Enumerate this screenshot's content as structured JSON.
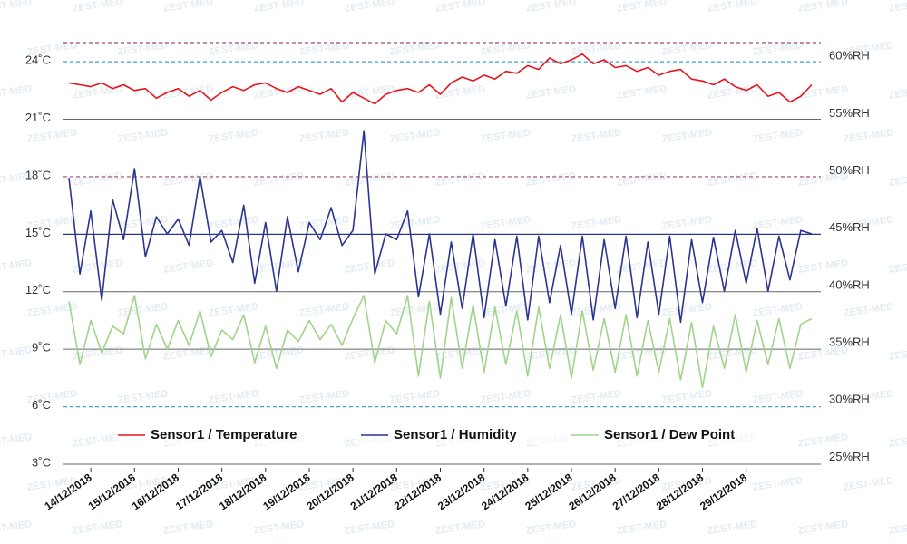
{
  "watermark": "ZEST-MED",
  "chart_data": {
    "type": "line",
    "x": [
      "2018-12-13T12:00",
      "2018-12-13T18:00",
      "2018-12-14T00:00",
      "2018-12-14T06:00",
      "2018-12-14T12:00",
      "2018-12-14T18:00",
      "2018-12-15T00:00",
      "2018-12-15T06:00",
      "2018-12-15T12:00",
      "2018-12-15T18:00",
      "2018-12-16T00:00",
      "2018-12-16T06:00",
      "2018-12-16T12:00",
      "2018-12-16T18:00",
      "2018-12-17T00:00",
      "2018-12-17T06:00",
      "2018-12-17T12:00",
      "2018-12-17T18:00",
      "2018-12-18T00:00",
      "2018-12-18T06:00",
      "2018-12-18T12:00",
      "2018-12-18T18:00",
      "2018-12-19T00:00",
      "2018-12-19T06:00",
      "2018-12-19T12:00",
      "2018-12-19T18:00",
      "2018-12-20T00:00",
      "2018-12-20T06:00",
      "2018-12-20T12:00",
      "2018-12-20T18:00",
      "2018-12-21T00:00",
      "2018-12-21T06:00",
      "2018-12-21T12:00",
      "2018-12-21T18:00",
      "2018-12-22T00:00",
      "2018-12-22T06:00",
      "2018-12-22T12:00",
      "2018-12-22T18:00",
      "2018-12-23T00:00",
      "2018-12-23T06:00",
      "2018-12-23T12:00",
      "2018-12-23T18:00",
      "2018-12-24T00:00",
      "2018-12-24T06:00",
      "2018-12-24T12:00",
      "2018-12-24T18:00",
      "2018-12-25T00:00",
      "2018-12-25T06:00",
      "2018-12-25T12:00",
      "2018-12-25T18:00",
      "2018-12-26T00:00",
      "2018-12-26T06:00",
      "2018-12-26T12:00",
      "2018-12-26T18:00",
      "2018-12-27T00:00",
      "2018-12-27T06:00",
      "2018-12-27T12:00",
      "2018-12-27T18:00",
      "2018-12-28T00:00",
      "2018-12-28T06:00",
      "2018-12-28T12:00",
      "2018-12-28T18:00",
      "2018-12-29T00:00",
      "2018-12-29T06:00",
      "2018-12-29T12:00",
      "2018-12-29T18:00",
      "2018-12-30T00:00",
      "2018-12-30T06:00",
      "2018-12-30T12:00"
    ],
    "series": [
      {
        "name": "Sensor1 / Temperature",
        "color": "#e8141c",
        "values": [
          22.9,
          22.8,
          22.7,
          22.9,
          22.6,
          22.8,
          22.5,
          22.6,
          22.1,
          22.4,
          22.6,
          22.2,
          22.5,
          22.0,
          22.4,
          22.7,
          22.5,
          22.8,
          22.9,
          22.6,
          22.4,
          22.7,
          22.5,
          22.3,
          22.6,
          21.9,
          22.4,
          22.1,
          21.8,
          22.3,
          22.5,
          22.6,
          22.4,
          22.8,
          22.3,
          22.9,
          23.2,
          23.0,
          23.3,
          23.1,
          23.5,
          23.4,
          23.8,
          23.6,
          24.2,
          23.9,
          24.1,
          24.4,
          23.9,
          24.1,
          23.7,
          23.8,
          23.5,
          23.7,
          23.3,
          23.5,
          23.6,
          23.1,
          23.0,
          22.8,
          23.1,
          22.7,
          22.5,
          22.8,
          22.2,
          22.4,
          21.9,
          22.2,
          22.8
        ]
      },
      {
        "name": "Sensor1 / Humidity",
        "color": "#2b3490",
        "axis": "y2",
        "values": [
          49.4,
          41.0,
          46.5,
          38.7,
          47.5,
          44.0,
          50.2,
          42.5,
          46.0,
          44.5,
          45.8,
          43.5,
          49.5,
          43.8,
          44.8,
          42.0,
          47.0,
          40.2,
          45.5,
          39.5,
          46.0,
          41.2,
          45.5,
          44.0,
          46.8,
          43.5,
          44.8,
          53.5,
          41.0,
          44.5,
          44.0,
          46.5,
          39.0,
          44.5,
          37.5,
          43.8,
          38.0,
          44.5,
          37.2,
          44.0,
          38.2,
          44.3,
          37.0,
          44.3,
          38.5,
          43.5,
          37.5,
          44.3,
          37.0,
          44.0,
          38.0,
          44.3,
          37.2,
          43.8,
          37.5,
          44.3,
          36.8,
          44.0,
          38.5,
          44.2,
          39.5,
          44.8,
          40.2,
          45.0,
          39.5,
          44.3,
          40.5,
          44.8,
          44.5
        ]
      },
      {
        "name": "Sensor1 / Dew Point",
        "color": "#9fd48a",
        "values": [
          11.5,
          8.2,
          10.5,
          8.8,
          10.2,
          9.8,
          11.8,
          8.5,
          10.3,
          9.0,
          10.5,
          9.2,
          11.0,
          8.6,
          10.0,
          9.5,
          10.8,
          8.3,
          10.2,
          8.0,
          10.0,
          9.4,
          10.5,
          9.5,
          10.3,
          9.2,
          10.6,
          11.8,
          8.3,
          10.5,
          9.8,
          11.8,
          7.6,
          11.5,
          7.5,
          11.7,
          8.0,
          11.3,
          7.8,
          11.2,
          8.2,
          11.0,
          7.6,
          11.2,
          8.0,
          10.8,
          7.5,
          11.0,
          7.9,
          10.6,
          7.8,
          10.8,
          7.6,
          10.5,
          7.8,
          10.6,
          7.4,
          10.4,
          7.0,
          10.2,
          8.0,
          10.8,
          7.8,
          10.5,
          8.2,
          10.6,
          8.0,
          10.3,
          10.6
        ]
      }
    ],
    "xlim": [
      "2018-12-13T09:00",
      "2018-12-30T17:00"
    ],
    "xticks": [
      {
        "value": "2018-12-14T00:00",
        "label": "14/12/2018"
      },
      {
        "value": "2018-12-15T00:00",
        "label": "15/12/2018"
      },
      {
        "value": "2018-12-16T00:00",
        "label": "16/12/2018"
      },
      {
        "value": "2018-12-17T00:00",
        "label": "17/12/2018"
      },
      {
        "value": "2018-12-18T00:00",
        "label": "18/12/2018"
      },
      {
        "value": "2018-12-19T00:00",
        "label": "19/12/2018"
      },
      {
        "value": "2018-12-20T00:00",
        "label": "20/12/2018"
      },
      {
        "value": "2018-12-21T00:00",
        "label": "21/12/2018"
      },
      {
        "value": "2018-12-22T00:00",
        "label": "22/12/2018"
      },
      {
        "value": "2018-12-23T00:00",
        "label": "23/12/2018"
      },
      {
        "value": "2018-12-24T00:00",
        "label": "24/12/2018"
      },
      {
        "value": "2018-12-25T00:00",
        "label": "25/12/2018"
      },
      {
        "value": "2018-12-26T00:00",
        "label": "26/12/2018"
      },
      {
        "value": "2018-12-27T00:00",
        "label": "27/12/2018"
      },
      {
        "value": "2018-12-28T00:00",
        "label": "28/12/2018"
      },
      {
        "value": "2018-12-29T00:00",
        "label": "29/12/2018"
      }
    ],
    "ylim": [
      3,
      25
    ],
    "yticks": [
      {
        "value": 3,
        "label": "3˚C"
      },
      {
        "value": 6,
        "label": "6˚C"
      },
      {
        "value": 9,
        "label": "9˚C"
      },
      {
        "value": 12,
        "label": "12˚C"
      },
      {
        "value": 15,
        "label": "15˚C"
      },
      {
        "value": 18,
        "label": "18˚C"
      },
      {
        "value": 21,
        "label": "21˚C"
      },
      {
        "value": 24,
        "label": "24˚C"
      }
    ],
    "y2lim": [
      24.4,
      61.2
    ],
    "y2ticks": [
      {
        "value": 25,
        "label": "25%RH"
      },
      {
        "value": 30,
        "label": "30%RH"
      },
      {
        "value": 35,
        "label": "35%RH"
      },
      {
        "value": 40,
        "label": "40%RH"
      },
      {
        "value": 45,
        "label": "45%RH"
      },
      {
        "value": 50,
        "label": "50%RH"
      },
      {
        "value": 55,
        "label": "55%RH"
      },
      {
        "value": 60,
        "label": "60%RH"
      }
    ],
    "grid": true,
    "reference_lines": [
      {
        "value": 25,
        "color": "#a34a6a",
        "dashed": true
      },
      {
        "value": 24,
        "color": "#3ea6c6",
        "dashed": true
      },
      {
        "value": 18,
        "color": "#a34a6a",
        "dashed": true
      },
      {
        "value": 15,
        "color": "#2b3490",
        "dashed": false
      },
      {
        "value": 6,
        "color": "#3ea6c6",
        "dashed": true
      }
    ],
    "legend": "bottom"
  }
}
